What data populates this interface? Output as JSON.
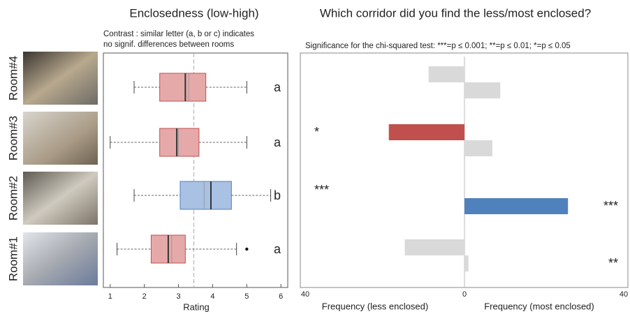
{
  "chart_data": [
    {
      "type": "box",
      "title": "Enclosedness (low-high)",
      "subtitle": [
        "Contrast : similar letter (a, b or c) indicates",
        "no signif. differences between rooms"
      ],
      "categories": [
        "Room#4",
        "Room#3",
        "Room#2",
        "Room#1"
      ],
      "boxes": [
        {
          "whislo": 1.7,
          "q1": 2.45,
          "med": 3.2,
          "q3": 3.8,
          "whishi": 5,
          "mean": 3.3,
          "fliers": [],
          "color": "#e6a9a9",
          "edge": "#c0504d"
        },
        {
          "whislo": 1,
          "q1": 2.45,
          "med": 2.95,
          "q3": 3.6,
          "whishi": 5,
          "mean": 3.0,
          "fliers": [],
          "color": "#e6a9a9",
          "edge": "#c0504d"
        },
        {
          "whislo": 1.7,
          "q1": 3.05,
          "med": 3.95,
          "q3": 4.55,
          "whishi": 5.7,
          "mean": 3.75,
          "fliers": [],
          "color": "#a9c1e3",
          "edge": "#4f81bd"
        },
        {
          "whislo": 1.2,
          "q1": 2.2,
          "med": 2.7,
          "q3": 3.2,
          "whishi": 4.7,
          "mean": 2.8,
          "fliers": [
            5
          ],
          "color": "#e6a9a9",
          "edge": "#c0504d"
        }
      ],
      "letters": [
        "a",
        "a",
        "b",
        "a"
      ],
      "x_label": "Rating",
      "xlim": [
        0.8,
        6.2
      ],
      "xticks": [
        1,
        2,
        3,
        4,
        5,
        6
      ],
      "reference_line": 3.45
    },
    {
      "type": "diverging-bar",
      "title": "Which corridor did you find the less/most enclosed?",
      "subtitle": "Significance for the chi-squared test: ***=p ≤ 0.001; **=p ≤ 0.01; *=p ≤ 0.05",
      "xlim": [
        -40,
        40
      ],
      "xticks": [
        {
          "value": -40,
          "label": "40"
        },
        0,
        40
      ],
      "series": [
        {
          "name": "Frequency (less enclosed)",
          "side": "left",
          "values": [
            9,
            19,
            0,
            15
          ],
          "colors": [
            "#d9d9d9",
            "#c0504d",
            "#d9d9d9",
            "#d9d9d9"
          ],
          "significance": [
            null,
            "*",
            "***",
            null
          ]
        },
        {
          "name": "Frequency (most enclosed)",
          "side": "right",
          "values": [
            9,
            7,
            26,
            1
          ],
          "colors": [
            "#d9d9d9",
            "#d9d9d9",
            "#4f81bd",
            "#d9d9d9"
          ],
          "significance": [
            null,
            null,
            "***",
            "**"
          ]
        }
      ]
    }
  ]
}
